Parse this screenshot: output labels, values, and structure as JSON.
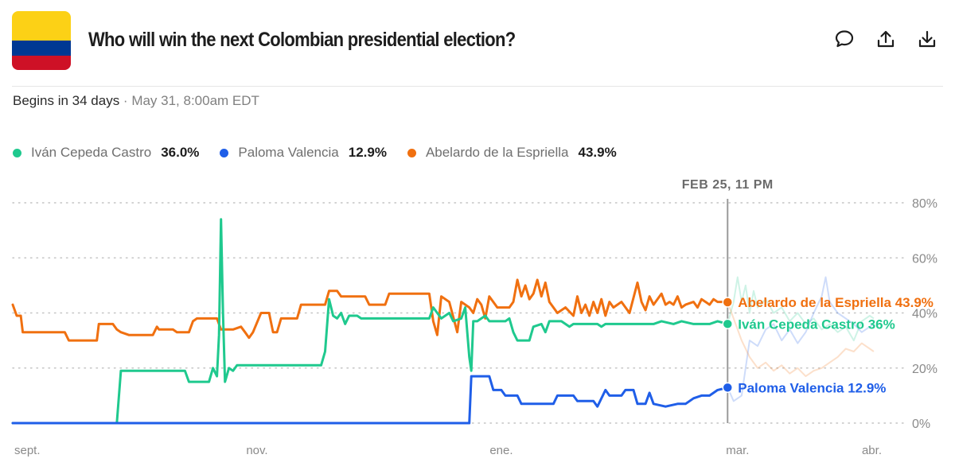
{
  "header": {
    "title": "Who will win the next Colombian presidential election?",
    "flag_colors": [
      "#fcd116",
      "#003893",
      "#ce1126"
    ],
    "actions": [
      {
        "name": "comment-icon",
        "label": ""
      },
      {
        "name": "share-icon",
        "label": ""
      },
      {
        "name": "download-icon",
        "label": ""
      }
    ]
  },
  "meta": {
    "begins": "Begins in 34 days",
    "separator": " · ",
    "date": "May 31, 8:00am EDT"
  },
  "legend": [
    {
      "name": "Iván Cepeda Castro",
      "value": "36.0%",
      "color": "#1fc98e"
    },
    {
      "name": "Paloma Valencia",
      "value": "12.9%",
      "color": "#1f5ee8"
    },
    {
      "name": "Abelardo de la Espriella",
      "value": "43.9%",
      "color": "#f07010"
    }
  ],
  "chart_data": {
    "type": "line",
    "hover_label": "FEB 25, 11 PM",
    "y_ticks": [
      "80%",
      "60%",
      "40%",
      "20%",
      "0%"
    ],
    "y_tick_values": [
      80,
      60,
      40,
      20,
      0
    ],
    "ylim": [
      0,
      80
    ],
    "x_ticks": [
      "sept.",
      "nov.",
      "ene.",
      "mar.",
      "abr."
    ],
    "x_tick_days": [
      0,
      61,
      122,
      181,
      212
    ],
    "xlim": [
      0,
      217
    ],
    "hover_day": 178.5,
    "grid": true,
    "series": [
      {
        "name": "Abelardo de la Espriella",
        "label": "Abelardo de la Espriella 43.9%",
        "color": "#f07010",
        "end": 43.9,
        "points": [
          [
            0,
            43
          ],
          [
            1,
            39
          ],
          [
            2,
            39
          ],
          [
            2.5,
            33
          ],
          [
            13,
            33
          ],
          [
            14,
            30
          ],
          [
            21,
            30
          ],
          [
            21.5,
            36
          ],
          [
            25,
            36
          ],
          [
            26,
            34
          ],
          [
            27,
            33
          ],
          [
            29,
            32
          ],
          [
            35,
            32
          ],
          [
            36,
            35
          ],
          [
            36.5,
            34
          ],
          [
            40,
            34
          ],
          [
            41,
            33
          ],
          [
            44,
            33
          ],
          [
            45,
            37
          ],
          [
            46,
            38
          ],
          [
            51,
            38
          ],
          [
            52,
            34
          ],
          [
            55,
            34
          ],
          [
            57,
            35
          ],
          [
            58,
            33
          ],
          [
            59,
            31
          ],
          [
            60,
            33
          ],
          [
            62,
            40
          ],
          [
            64,
            40
          ],
          [
            65,
            33
          ],
          [
            66,
            33
          ],
          [
            67,
            38
          ],
          [
            71,
            38
          ],
          [
            72,
            43
          ],
          [
            78,
            43
          ],
          [
            79,
            48
          ],
          [
            81,
            48
          ],
          [
            82,
            46
          ],
          [
            88,
            46
          ],
          [
            89,
            43
          ],
          [
            93,
            43
          ],
          [
            94,
            47
          ],
          [
            104,
            47
          ],
          [
            105,
            37
          ],
          [
            106,
            32
          ],
          [
            107,
            46
          ],
          [
            109,
            44
          ],
          [
            111,
            33
          ],
          [
            112,
            44
          ],
          [
            114,
            42
          ],
          [
            115,
            40
          ],
          [
            116,
            45
          ],
          [
            117,
            43
          ],
          [
            118,
            38
          ],
          [
            119,
            46
          ],
          [
            121,
            42
          ],
          [
            124,
            42
          ],
          [
            125,
            44
          ],
          [
            126,
            52
          ],
          [
            127,
            46
          ],
          [
            128,
            50
          ],
          [
            129,
            45
          ],
          [
            130,
            47
          ],
          [
            131,
            52
          ],
          [
            132,
            46
          ],
          [
            133,
            51
          ],
          [
            134,
            44
          ],
          [
            136,
            40
          ],
          [
            138,
            42
          ],
          [
            140,
            39
          ],
          [
            141,
            46
          ],
          [
            142,
            40
          ],
          [
            143,
            43
          ],
          [
            144,
            39
          ],
          [
            145,
            44
          ],
          [
            146,
            40
          ],
          [
            147,
            45
          ],
          [
            148,
            39
          ],
          [
            149,
            44
          ],
          [
            150,
            42
          ],
          [
            152,
            44
          ],
          [
            154,
            40
          ],
          [
            156,
            51
          ],
          [
            157,
            44
          ],
          [
            158,
            41
          ],
          [
            159,
            46
          ],
          [
            160,
            43
          ],
          [
            162,
            47
          ],
          [
            163,
            43
          ],
          [
            164,
            44
          ],
          [
            165,
            43
          ],
          [
            166,
            46
          ],
          [
            167,
            42
          ],
          [
            168,
            43
          ],
          [
            170,
            44
          ],
          [
            171,
            42
          ],
          [
            172,
            45
          ],
          [
            173,
            44
          ],
          [
            174,
            43
          ],
          [
            175,
            45
          ],
          [
            176,
            44
          ],
          [
            177,
            44
          ],
          [
            178.5,
            43.9
          ]
        ]
      },
      {
        "name": "Iván Cepeda Castro",
        "label": "Iván Cepeda Castro 36%",
        "color": "#1fc98e",
        "end": 36,
        "points": [
          [
            0,
            0
          ],
          [
            26,
            0
          ],
          [
            27,
            19
          ],
          [
            43,
            19
          ],
          [
            44,
            15
          ],
          [
            49,
            15
          ],
          [
            50,
            20
          ],
          [
            51,
            17
          ],
          [
            51.5,
            32
          ],
          [
            52,
            74
          ],
          [
            52.5,
            40
          ],
          [
            53,
            15
          ],
          [
            54,
            20
          ],
          [
            55,
            19
          ],
          [
            56,
            21
          ],
          [
            77,
            21
          ],
          [
            78,
            26
          ],
          [
            79,
            45
          ],
          [
            80,
            39
          ],
          [
            81,
            38
          ],
          [
            82,
            40
          ],
          [
            83,
            36
          ],
          [
            84,
            39
          ],
          [
            86,
            39
          ],
          [
            87,
            38
          ],
          [
            104,
            38
          ],
          [
            105,
            42
          ],
          [
            107,
            38
          ],
          [
            109,
            40
          ],
          [
            110,
            37
          ],
          [
            112,
            38
          ],
          [
            113,
            42
          ],
          [
            114,
            24
          ],
          [
            114.5,
            19
          ],
          [
            115,
            37
          ],
          [
            116,
            37
          ],
          [
            117,
            38
          ],
          [
            118,
            39
          ],
          [
            119,
            37
          ],
          [
            123,
            37
          ],
          [
            124,
            38
          ],
          [
            125,
            33
          ],
          [
            126,
            30
          ],
          [
            129,
            30
          ],
          [
            130,
            35
          ],
          [
            132,
            36
          ],
          [
            133,
            33
          ],
          [
            134,
            37
          ],
          [
            137,
            37
          ],
          [
            139,
            35
          ],
          [
            140,
            36
          ],
          [
            146,
            36
          ],
          [
            147,
            35
          ],
          [
            148,
            36
          ],
          [
            160,
            36
          ],
          [
            162,
            37
          ],
          [
            165,
            36
          ],
          [
            167,
            37
          ],
          [
            170,
            36
          ],
          [
            174,
            36
          ],
          [
            176,
            37
          ],
          [
            178.5,
            36
          ]
        ]
      },
      {
        "name": "Paloma Valencia",
        "label": "Paloma Valencia 12.9%",
        "color": "#1f5ee8",
        "end": 12.9,
        "points": [
          [
            0,
            0
          ],
          [
            114,
            0
          ],
          [
            114.5,
            17
          ],
          [
            119,
            17
          ],
          [
            120,
            12
          ],
          [
            122,
            12
          ],
          [
            123,
            10
          ],
          [
            126,
            10
          ],
          [
            127,
            7
          ],
          [
            135,
            7
          ],
          [
            136,
            10
          ],
          [
            140,
            10
          ],
          [
            141,
            8
          ],
          [
            145,
            8
          ],
          [
            146,
            6
          ],
          [
            148,
            12
          ],
          [
            149,
            10
          ],
          [
            152,
            10
          ],
          [
            153,
            12
          ],
          [
            155,
            12
          ],
          [
            156,
            7
          ],
          [
            158,
            7
          ],
          [
            159,
            11
          ],
          [
            160,
            7
          ],
          [
            163,
            6
          ],
          [
            166,
            7
          ],
          [
            168,
            7
          ],
          [
            170,
            9
          ],
          [
            172,
            10
          ],
          [
            174,
            10
          ],
          [
            176,
            12
          ],
          [
            178.5,
            12.9
          ]
        ]
      }
    ],
    "ghost_series": [
      {
        "name": "Iván Cepeda Castro",
        "color": "#1fc98e",
        "points": [
          [
            178.5,
            36
          ],
          [
            180,
            44
          ],
          [
            181,
            53
          ],
          [
            182,
            44
          ],
          [
            183,
            50
          ],
          [
            184,
            40
          ],
          [
            185,
            48
          ],
          [
            186,
            42
          ],
          [
            188,
            45
          ],
          [
            190,
            40
          ],
          [
            192,
            42
          ],
          [
            194,
            37
          ],
          [
            196,
            40
          ],
          [
            198,
            36
          ],
          [
            200,
            38
          ],
          [
            202,
            34
          ],
          [
            204,
            36
          ],
          [
            206,
            33
          ],
          [
            208,
            35
          ],
          [
            210,
            30
          ],
          [
            212,
            37
          ],
          [
            214,
            39
          ],
          [
            215,
            38
          ]
        ]
      },
      {
        "name": "Paloma Valencia",
        "color": "#1f5ee8",
        "points": [
          [
            178.5,
            12.9
          ],
          [
            180,
            8
          ],
          [
            182,
            10
          ],
          [
            184,
            30
          ],
          [
            186,
            28
          ],
          [
            188,
            34
          ],
          [
            190,
            36
          ],
          [
            192,
            30
          ],
          [
            194,
            34
          ],
          [
            196,
            29
          ],
          [
            198,
            33
          ],
          [
            200,
            40
          ],
          [
            202,
            46
          ],
          [
            203,
            53
          ],
          [
            204,
            44
          ],
          [
            206,
            40
          ],
          [
            208,
            38
          ],
          [
            210,
            36
          ],
          [
            212,
            33
          ],
          [
            214,
            35
          ],
          [
            215,
            36
          ]
        ]
      },
      {
        "name": "Abelardo de la Espriella",
        "color": "#f07010",
        "points": [
          [
            178.5,
            43.9
          ],
          [
            180,
            38
          ],
          [
            182,
            30
          ],
          [
            184,
            24
          ],
          [
            186,
            20
          ],
          [
            188,
            22
          ],
          [
            190,
            19
          ],
          [
            192,
            21
          ],
          [
            194,
            18
          ],
          [
            196,
            20
          ],
          [
            198,
            17
          ],
          [
            200,
            19
          ],
          [
            202,
            20
          ],
          [
            204,
            22
          ],
          [
            206,
            24
          ],
          [
            208,
            27
          ],
          [
            210,
            26
          ],
          [
            212,
            29
          ],
          [
            214,
            27
          ],
          [
            215,
            26
          ]
        ]
      }
    ]
  }
}
